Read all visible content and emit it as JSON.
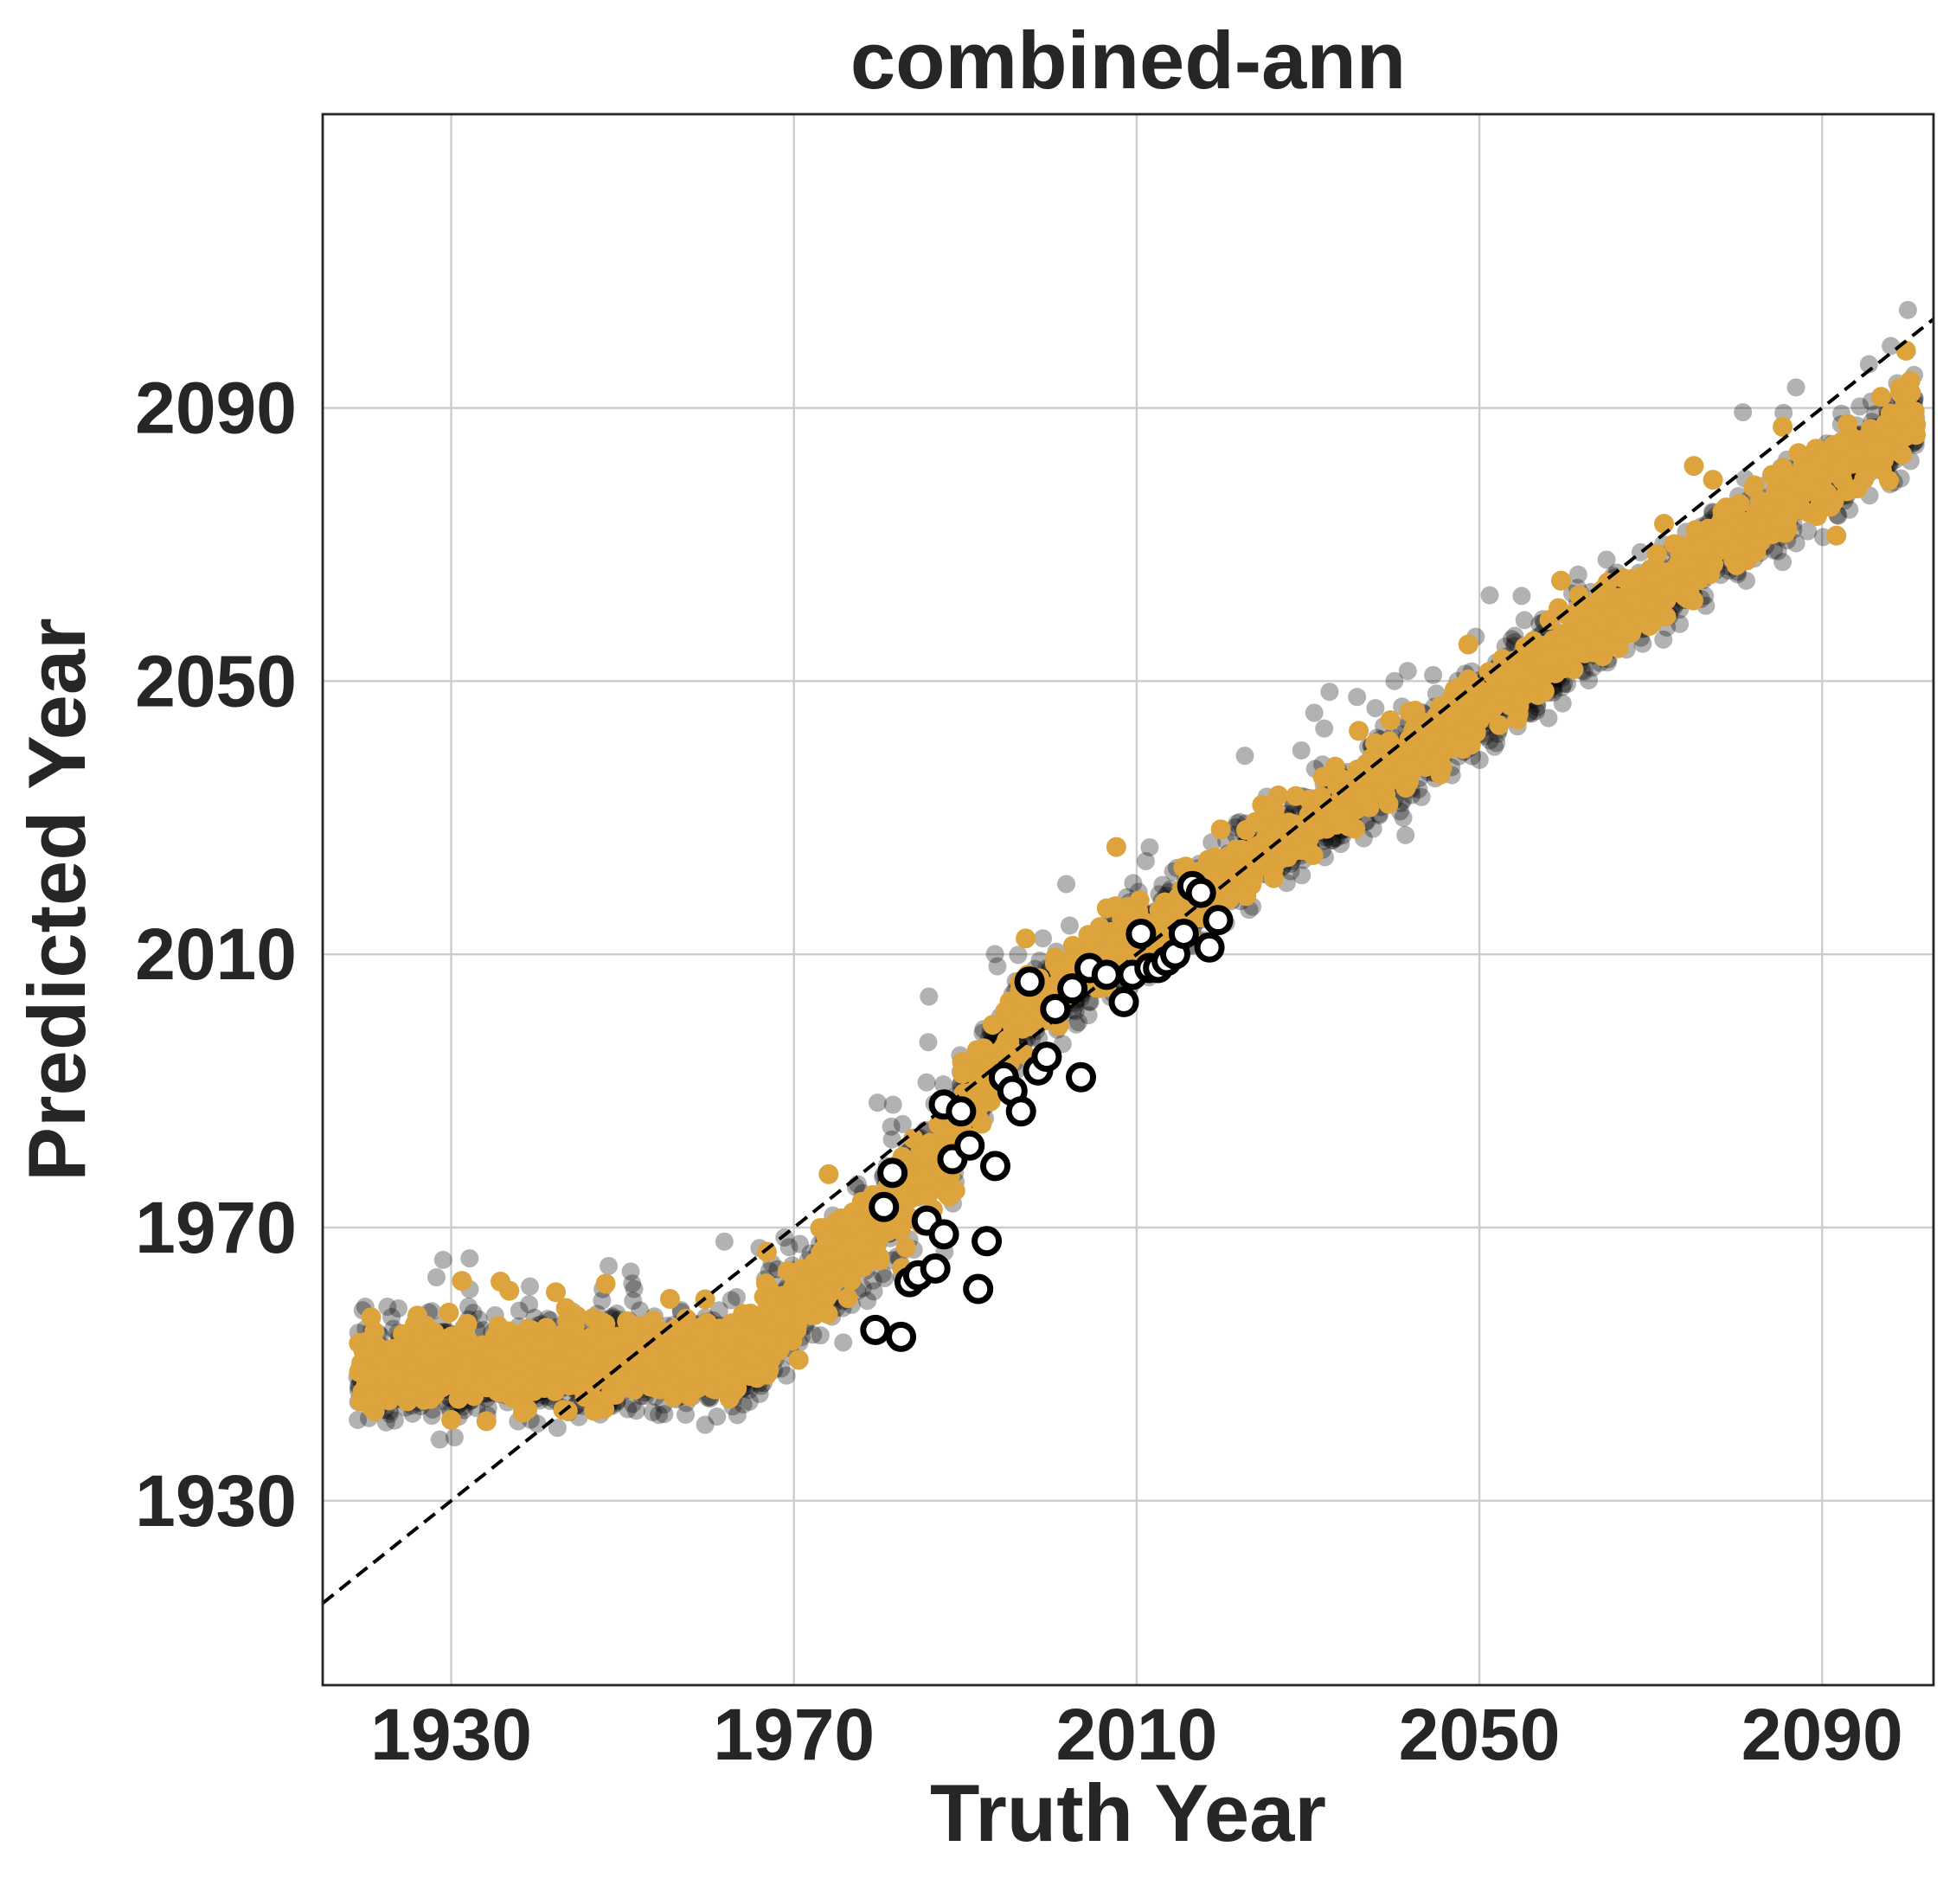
{
  "chart_data": {
    "type": "scatter",
    "title": "combined-ann",
    "xlabel": "Truth Year",
    "ylabel": "Predicted Year",
    "xlim": [
      1915,
      2103
    ],
    "ylim": [
      1903,
      2133
    ],
    "xticks": [
      1930,
      1970,
      2010,
      2050,
      2090
    ],
    "yticks": [
      1930,
      1970,
      2010,
      2050,
      2090
    ],
    "xtick_labels": [
      "1930",
      "1970",
      "2010",
      "2050",
      "2090"
    ],
    "ytick_labels": [
      "1930",
      "1970",
      "2010",
      "2050",
      "2090"
    ],
    "grid": true,
    "legend": "none",
    "reference_line": {
      "style": "dashed",
      "color": "#000000",
      "points": [
        [
          1915,
          1915
        ],
        [
          2103,
          2103
        ]
      ]
    },
    "colors": {
      "gray_series": "#000000",
      "orange_series": "#dda33c",
      "observed_fill": "#ffffff",
      "observed_edge": "#000000"
    },
    "series": [
      {
        "marker": "circle-gray-translucent",
        "segments": [
          {
            "x_range": [
              1919,
              1964
            ],
            "y_start": 1949,
            "y_end": 1950,
            "y_spread": 9,
            "count": 900
          },
          {
            "x_range": [
              1964,
              1989
            ],
            "y_start": 1950,
            "y_end": 1982,
            "y_spread": 11,
            "count": 380
          },
          {
            "x_range": [
              1989,
              1996
            ],
            "y_start": 1985,
            "y_end": 2000,
            "y_spread": 9,
            "count": 110
          },
          {
            "x_range": [
              1996,
              2101
            ],
            "y_start": 2000,
            "y_end": 2089,
            "y_spread": 8,
            "count": 1500
          }
        ]
      },
      {
        "marker": "circle-orange",
        "segments": [
          {
            "x_range": [
              1919,
              1964
            ],
            "y_start": 1949,
            "y_end": 1951,
            "y_spread": 7,
            "count": 650
          },
          {
            "x_range": [
              1964,
              1989
            ],
            "y_start": 1951,
            "y_end": 1982,
            "y_spread": 8,
            "count": 280
          },
          {
            "x_range": [
              1989,
              1996
            ],
            "y_start": 1985,
            "y_end": 2000,
            "y_spread": 7,
            "count": 80
          },
          {
            "x_range": [
              1996,
              2101
            ],
            "y_start": 2001,
            "y_end": 2089,
            "y_spread": 6,
            "count": 1100
          }
        ]
      },
      {
        "marker": "circle-white-black-edge",
        "points": [
          [
            1979.5,
            1955
          ],
          [
            1982.5,
            1954
          ],
          [
            1980.5,
            1973
          ],
          [
            1981.5,
            1978
          ],
          [
            1983.5,
            1962
          ],
          [
            1984.5,
            1963
          ],
          [
            1985.5,
            1971
          ],
          [
            1986.5,
            1964
          ],
          [
            1987.5,
            1969
          ],
          [
            1987.5,
            1988
          ],
          [
            1988.5,
            1980
          ],
          [
            1989.5,
            1987
          ],
          [
            1990.5,
            1982
          ],
          [
            1991.5,
            1961
          ],
          [
            1992.5,
            1968
          ],
          [
            1993.5,
            1979
          ],
          [
            1994.5,
            1992
          ],
          [
            1995.5,
            1990
          ],
          [
            1996.5,
            1987
          ],
          [
            1997.5,
            2006
          ],
          [
            1998.5,
            1993
          ],
          [
            1999.5,
            1995
          ],
          [
            2000.5,
            2002
          ],
          [
            2002.5,
            2005
          ],
          [
            2003.5,
            1992
          ],
          [
            2004.5,
            2008
          ],
          [
            2006.5,
            2007
          ],
          [
            2008.5,
            2003
          ],
          [
            2009.5,
            2007
          ],
          [
            2010.5,
            2013
          ],
          [
            2011.5,
            2008
          ],
          [
            2012.5,
            2008
          ],
          [
            2013.5,
            2009
          ],
          [
            2014.5,
            2010
          ],
          [
            2015.5,
            2013
          ],
          [
            2016.5,
            2020
          ],
          [
            2017.5,
            2019
          ],
          [
            2018.5,
            2011
          ],
          [
            2019.5,
            2015
          ]
        ]
      }
    ]
  }
}
